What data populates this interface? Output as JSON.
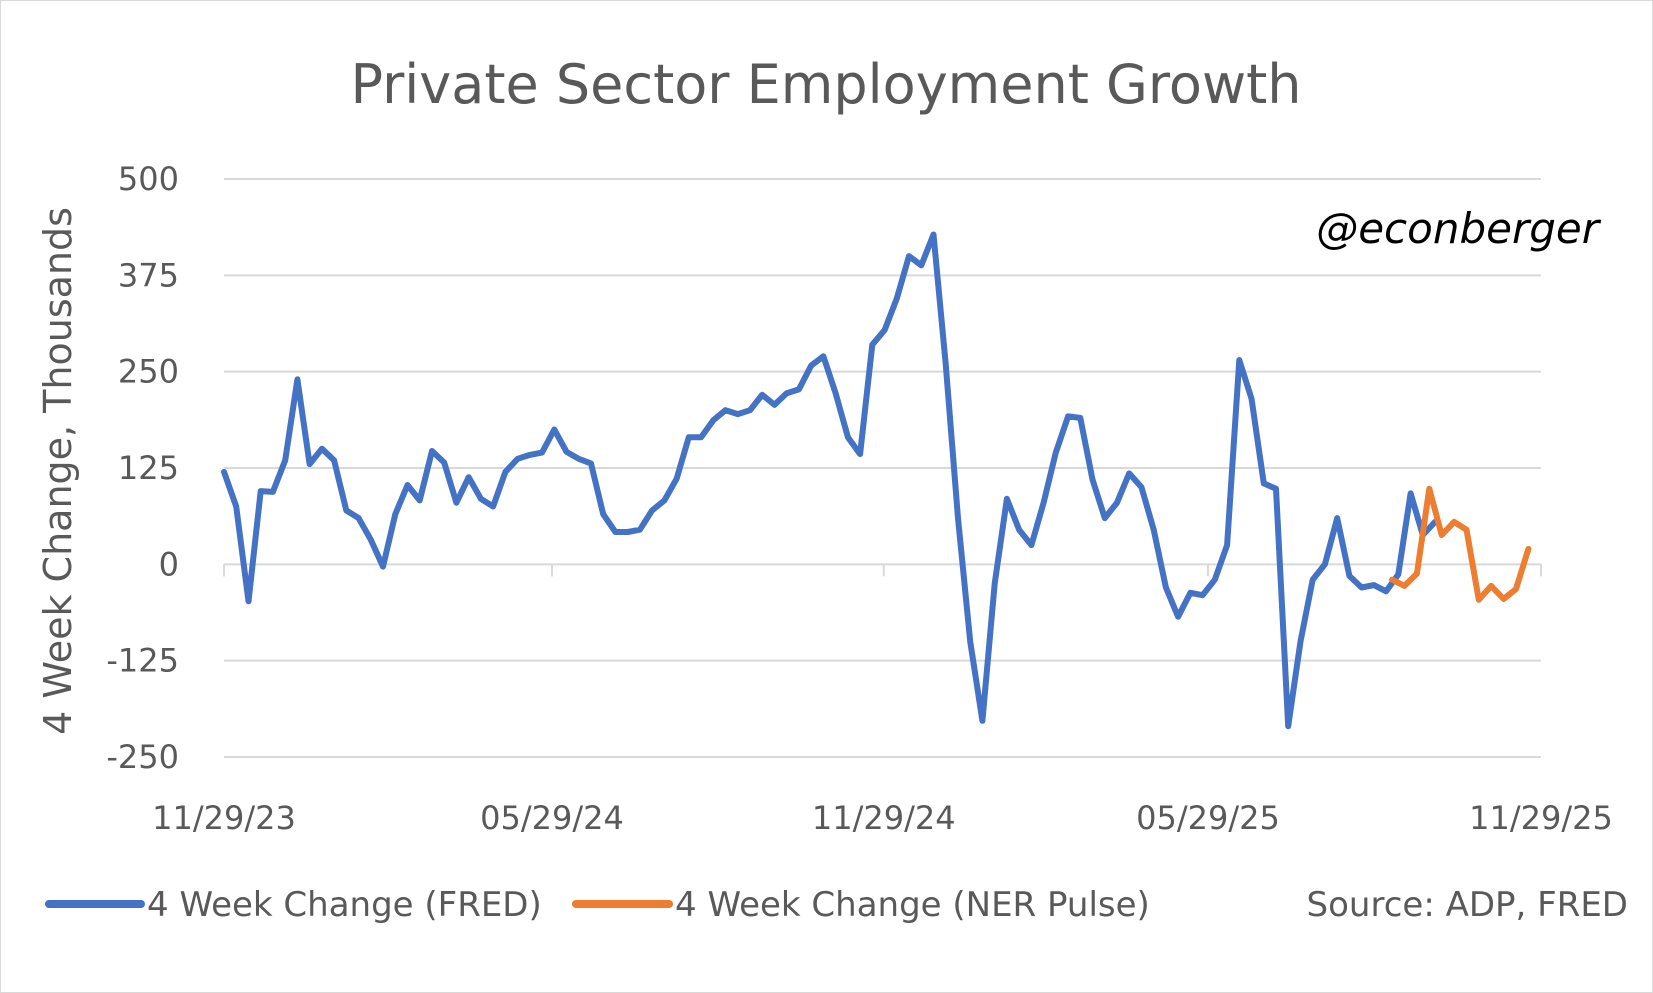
{
  "chart_data": {
    "type": "line",
    "title": "Private Sector Employment Growth",
    "ylabel": "4 Week Change, Thousands",
    "xlabel": "",
    "ylim": [
      -250,
      500
    ],
    "yticks": [
      500,
      375,
      250,
      125,
      0,
      -125,
      -250
    ],
    "ytick_labels": [
      "500",
      "375",
      "250",
      "125",
      "0",
      "-125",
      "-250"
    ],
    "x_range_weeks": [
      0,
      104.4
    ],
    "xticks": [
      {
        "label": "11/29/23",
        "week": 0
      },
      {
        "label": "05/29/24",
        "week": 26
      },
      {
        "label": "11/29/24",
        "week": 52.3
      },
      {
        "label": "05/29/25",
        "week": 78
      },
      {
        "label": "11/29/25",
        "week": 104.4
      }
    ],
    "annotation": "@econberger",
    "source": "Source: ADP, FRED",
    "series": [
      {
        "name": "4 Week Change (FRED)",
        "color": "#4472C4",
        "start_week": 0,
        "values": [
          120,
          75,
          -48,
          95,
          94,
          135,
          240,
          130,
          150,
          135,
          70,
          60,
          32,
          -3,
          65,
          103,
          83,
          147,
          132,
          80,
          113,
          85,
          75,
          120,
          137,
          142,
          145,
          175,
          146,
          137,
          131,
          65,
          42,
          42,
          45,
          70,
          83,
          111,
          165,
          165,
          187,
          200,
          195,
          200,
          220,
          207,
          222,
          227,
          258,
          270,
          222,
          165,
          143,
          285,
          304,
          345,
          400,
          388,
          428,
          260,
          60,
          -100,
          -203,
          -25,
          85,
          45,
          25,
          80,
          145,
          192,
          190,
          110,
          60,
          80,
          118,
          100,
          45,
          -30,
          -68,
          -37,
          -40,
          -20,
          25,
          265,
          215,
          105,
          98,
          -210,
          -100,
          -20,
          0,
          60,
          -15,
          -30,
          -27,
          -35,
          -13,
          92,
          38,
          55
        ],
        "end_week": 96
      },
      {
        "name": "4 Week Change (NER Pulse)",
        "color": "#ED7D31",
        "start_week": 92.6,
        "end_week": 103.4,
        "values": [
          -20,
          -28,
          -12,
          98,
          38,
          55,
          45,
          -46,
          -28,
          -45,
          -32,
          20
        ]
      }
    ]
  }
}
